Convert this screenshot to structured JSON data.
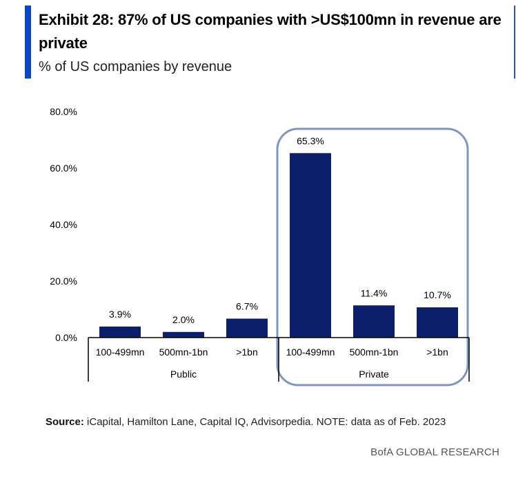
{
  "header": {
    "title": "Exhibit 28: 87% of US companies with >US$100mn in revenue are private",
    "subtitle": "% of US companies by revenue"
  },
  "chart_data": {
    "type": "bar",
    "ylim": [
      0,
      80
    ],
    "yticks": [
      "0.0%",
      "20.0%",
      "40.0%",
      "60.0%",
      "80.0%"
    ],
    "ytick_values": [
      0,
      20,
      40,
      60,
      80
    ],
    "categories": [
      "100-499mn",
      "500mn-1bn",
      ">1bn",
      "100-499mn",
      "500mn-1bn",
      ">1bn"
    ],
    "groups": [
      "Public",
      "Private"
    ],
    "group_of_category": [
      0,
      0,
      0,
      1,
      1,
      1
    ],
    "values": [
      3.9,
      2.0,
      6.7,
      65.3,
      11.4,
      10.7
    ],
    "data_labels": [
      "3.9%",
      "2.0%",
      "6.7%",
      "65.3%",
      "11.4%",
      "10.7%"
    ],
    "highlight_group": "Private",
    "bar_color": "#0b1f6b",
    "highlight_stroke": "#7f95c2",
    "grid": false
  },
  "footer": {
    "source_label": "Source:",
    "source_text": " iCapital, Hamilton Lane, Capital IQ, Advisorpedia. NOTE: data as of Feb. 2023",
    "brand": "BofA GLOBAL RESEARCH"
  }
}
